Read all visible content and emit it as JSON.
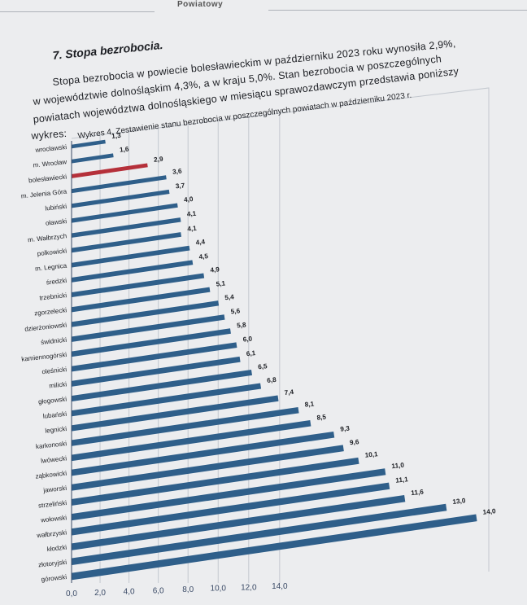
{
  "page": {
    "header": "Powiatowy",
    "section_title": "7. Stopa bezrobocia.",
    "paragraph": [
      "Stopa bezrobocia w powiecie bolesławieckim w październiku 2023 roku wynosiła 2,9%,",
      "w województwie dolnośląskim 4,3%, a w kraju 5,0%. Stan bezrobocia w poszczególnych",
      "powiatach województwa dolnośląskiego w miesiącu sprawozdawczym przedstawia poniższy",
      "wykres:"
    ]
  },
  "chart_data": {
    "type": "bar",
    "orientation": "horizontal",
    "title": "Wykres 4. Zestawienie stanu bezrobocia w poszczególnych powiatach w październiku 2023 r.",
    "xlabel": "",
    "ylabel": "",
    "xlim": [
      0,
      14
    ],
    "x_ticks": [
      "0,0",
      "2,0",
      "4,0",
      "6,0",
      "8,0",
      "10,0",
      "12,0",
      "14,0"
    ],
    "grid": true,
    "legend": "none",
    "categories": [
      "wrocławski",
      "m. Wrocław",
      "bolesławiecki",
      "m. Jelenia Góra",
      "lubiński",
      "oławski",
      "m. Wałbrzych",
      "polkowicki",
      "m. Legnica",
      "średzki",
      "trzebnicki",
      "zgorzelecki",
      "dzierżoniowski",
      "świdnicki",
      "kamiennogórski",
      "oleśnicki",
      "milicki",
      "głogowski",
      "lubański",
      "legnicki",
      "karkonoski",
      "lwówecki",
      "ząbkowicki",
      "jaworski",
      "strzeliński",
      "wołowski",
      "wałbrzyski",
      "kłodzki",
      "złotoryjski",
      "górowski"
    ],
    "values": [
      1.3,
      1.6,
      2.9,
      3.6,
      3.7,
      4.0,
      4.1,
      4.1,
      4.4,
      4.5,
      4.9,
      5.1,
      5.4,
      5.6,
      5.8,
      6.0,
      6.1,
      6.5,
      6.8,
      7.4,
      8.1,
      8.5,
      9.3,
      9.6,
      10.1,
      11.0,
      11.1,
      11.6,
      13.0,
      14.0
    ],
    "value_labels": [
      "1,3",
      "1,6",
      "2,9",
      "3,6",
      "3,7",
      "4,0",
      "4,1",
      "4,1",
      "4,4",
      "4,5",
      "4,9",
      "5,1",
      "5,4",
      "5,6",
      "5,8",
      "6,0",
      "6,1",
      "6,5",
      "6,8",
      "7,4",
      "8,1",
      "8,5",
      "9,3",
      "9,6",
      "10,1",
      "11,0",
      "11,1",
      "11,6",
      "13,0",
      "14,0"
    ],
    "highlight_category": "bolesławiecki",
    "colors": {
      "bar": "#2f5f8a",
      "highlight": "#b5303a",
      "grid": "#c3c8cf",
      "axis": "#3a4a66"
    }
  }
}
